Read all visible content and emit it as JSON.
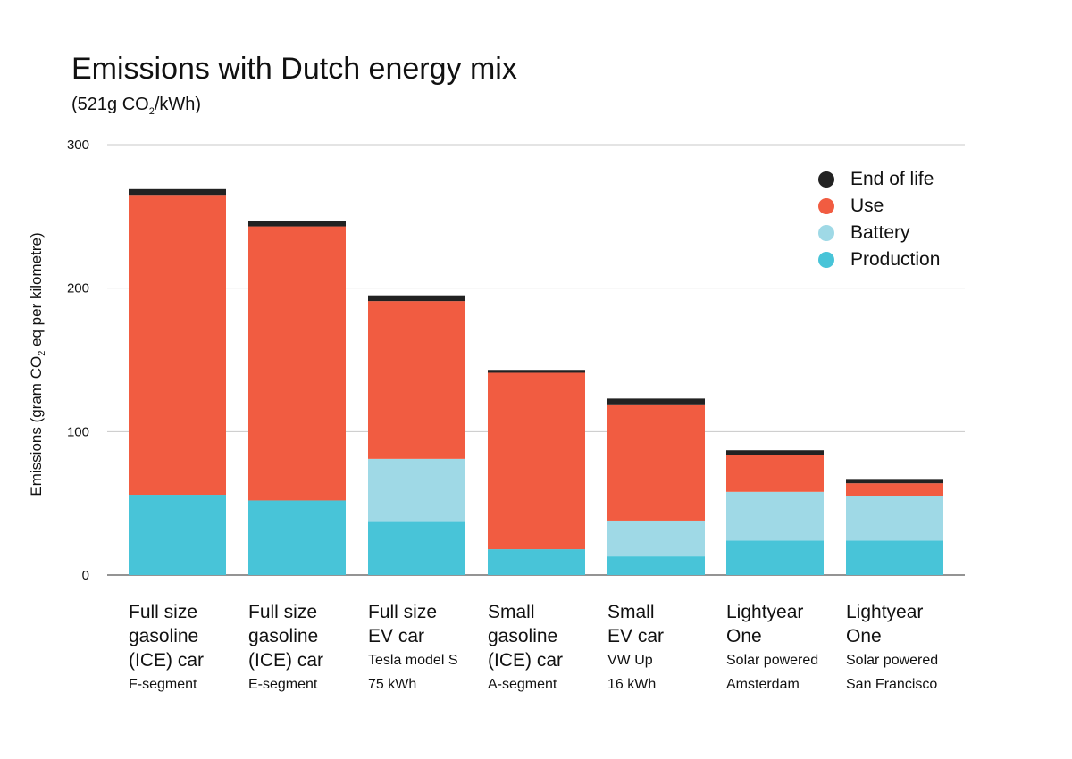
{
  "title": "Emissions with Dutch energy mix",
  "subtitle": {
    "pre": "(521g CO",
    "sub": "2",
    "post": "/kWh)"
  },
  "ylabel": {
    "pre": "Emissions (gram CO",
    "sub": "2",
    "post": " eq per kilometre)"
  },
  "chart_data": {
    "type": "bar",
    "stacked": true,
    "title": "Emissions with Dutch energy mix",
    "ylim": [
      0,
      300
    ],
    "yticks": [
      "0",
      "100",
      "200",
      "300"
    ],
    "grid": true,
    "legend_position": "top-right",
    "categories": [
      {
        "main": [
          "Full size",
          "gasoline",
          "(ICE) car"
        ],
        "sub": [
          "F-segment"
        ]
      },
      {
        "main": [
          "Full size",
          "gasoline",
          "(ICE) car"
        ],
        "sub": [
          "E-segment"
        ]
      },
      {
        "main": [
          "Full size",
          "EV car"
        ],
        "sub": [
          "Tesla model S",
          "75 kWh"
        ]
      },
      {
        "main": [
          "Small",
          "gasoline",
          "(ICE) car"
        ],
        "sub": [
          "A-segment"
        ]
      },
      {
        "main": [
          "Small",
          "EV car"
        ],
        "sub": [
          "VW Up",
          "16 kWh"
        ]
      },
      {
        "main": [
          "Lightyear",
          "One"
        ],
        "sub": [
          "Solar powered",
          "Amsterdam"
        ]
      },
      {
        "main": [
          "Lightyear",
          "One"
        ],
        "sub": [
          "Solar powered",
          "San Francisco"
        ]
      }
    ],
    "series": [
      {
        "name": "Production",
        "color": "#48c4d8",
        "values": [
          56,
          52,
          37,
          18,
          13,
          24,
          24
        ]
      },
      {
        "name": "Battery",
        "color": "#9fd9e6",
        "values": [
          0,
          0,
          44,
          0,
          25,
          34,
          31
        ]
      },
      {
        "name": "Use",
        "color": "#f15c41",
        "values": [
          209,
          191,
          110,
          123,
          81,
          26,
          9
        ]
      },
      {
        "name": "End of life",
        "color": "#222222",
        "values": [
          4,
          4,
          4,
          2,
          4,
          3,
          3
        ]
      }
    ]
  }
}
